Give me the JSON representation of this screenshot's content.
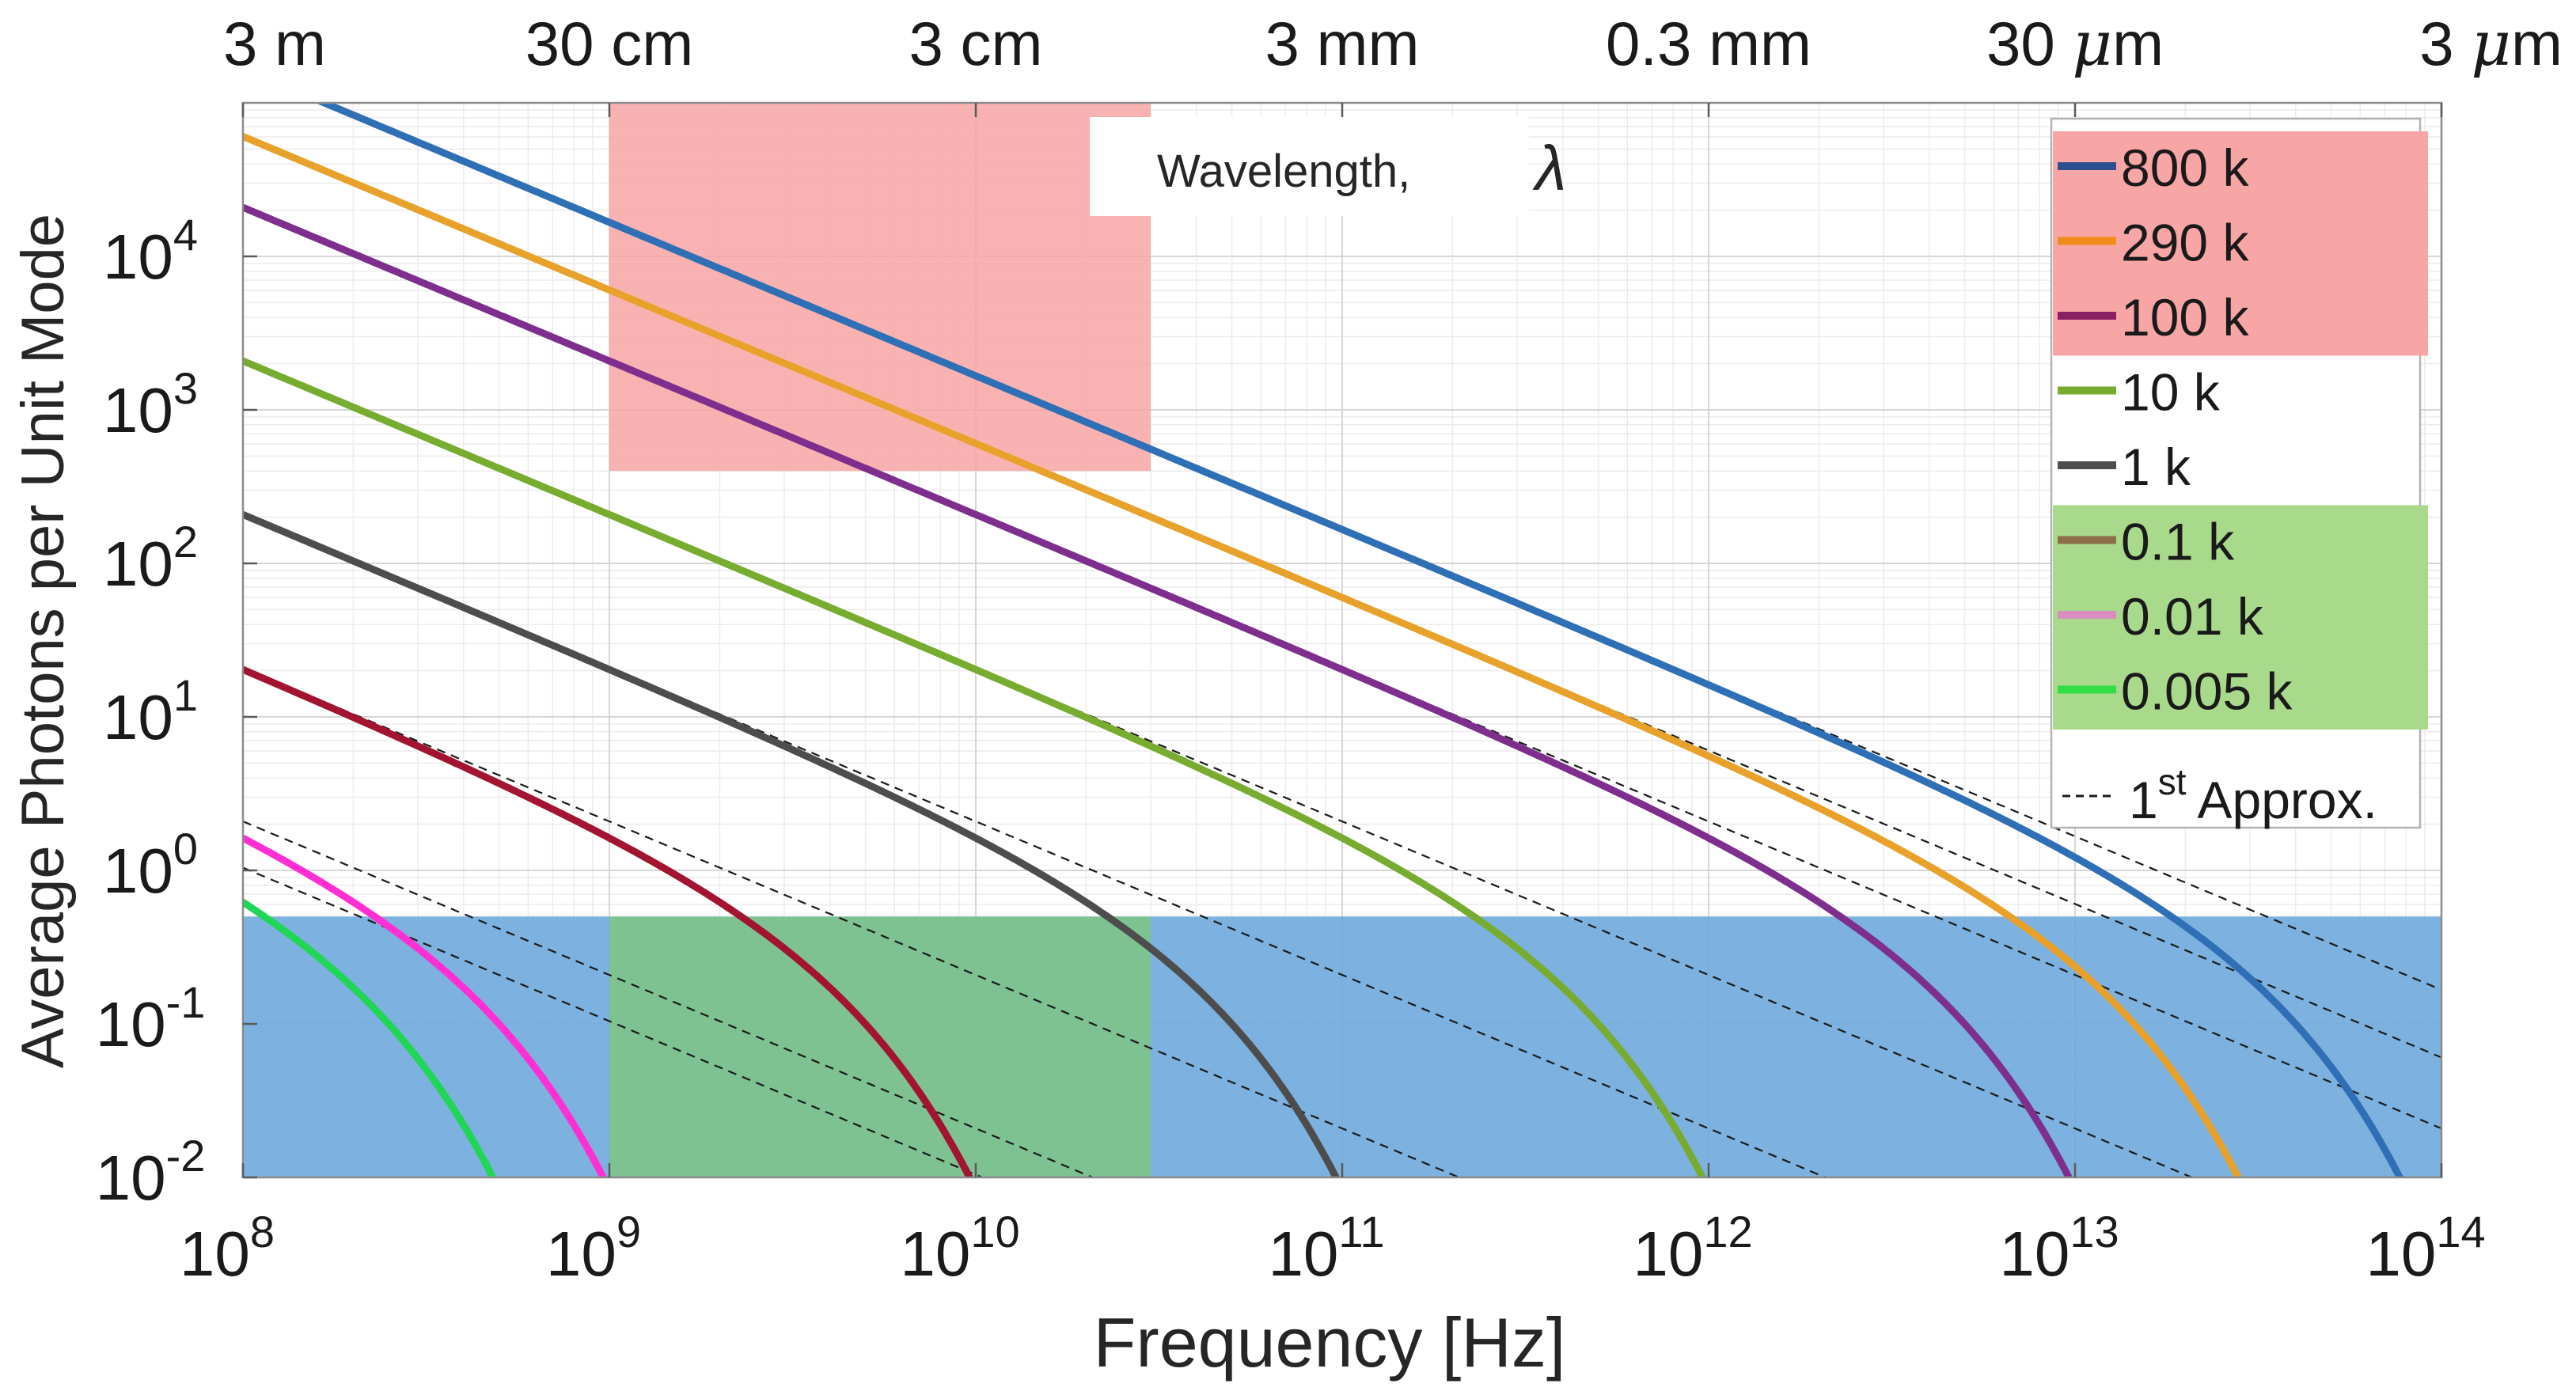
{
  "chart_data": {
    "type": "line",
    "xlabel": "Frequency [Hz]",
    "ylabel": "Average Photons per Unit Mode",
    "x_scale": "log",
    "y_scale": "log",
    "xlim": [
      100000000,
      100000000000000
    ],
    "ylim": [
      0.01,
      100000
    ],
    "grid": true,
    "legend_position": "right",
    "x_ticks": [
      {
        "value": 100000000,
        "base": "10",
        "exp": "8"
      },
      {
        "value": 1000000000,
        "base": "10",
        "exp": "9"
      },
      {
        "value": 10000000000,
        "base": "10",
        "exp": "10"
      },
      {
        "value": 100000000000,
        "base": "10",
        "exp": "11"
      },
      {
        "value": 1000000000000,
        "base": "10",
        "exp": "12"
      },
      {
        "value": 10000000000000,
        "base": "10",
        "exp": "13"
      },
      {
        "value": 100000000000000,
        "base": "10",
        "exp": "14"
      }
    ],
    "y_ticks": [
      {
        "value": 0.01,
        "base": "10",
        "exp": "-2"
      },
      {
        "value": 0.1,
        "base": "10",
        "exp": "-1"
      },
      {
        "value": 1,
        "base": "10",
        "exp": "0"
      },
      {
        "value": 10,
        "base": "10",
        "exp": "1"
      },
      {
        "value": 100,
        "base": "10",
        "exp": "2"
      },
      {
        "value": 1000,
        "base": "10",
        "exp": "3"
      },
      {
        "value": 10000,
        "base": "10",
        "exp": "4"
      }
    ],
    "top_axis": {
      "label": "Wavelength,",
      "label_symbol": "λ",
      "ticks": [
        {
          "freq": 100000000,
          "text": "3 m"
        },
        {
          "freq": 1000000000,
          "text": "30 cm"
        },
        {
          "freq": 10000000000,
          "text": "3 cm"
        },
        {
          "freq": 100000000000,
          "text": "3 mm"
        },
        {
          "freq": 1000000000000,
          "text": "0.3 mm"
        },
        {
          "freq": 10000000000000,
          "text": "30 μm"
        },
        {
          "freq": 100000000000000,
          "text": "3 μm"
        }
      ]
    },
    "regions": [
      {
        "name": "top-left-band",
        "x": [
          1000000000,
          30000000000
        ],
        "y": [
          400,
          100000
        ],
        "color": "#f8a5a5"
      },
      {
        "name": "bottom-band",
        "x": [
          100000000,
          100000000000000
        ],
        "y": [
          0.01,
          0.5
        ],
        "color": "#6fa8dc"
      },
      {
        "name": "overlap-band",
        "x": [
          1000000000,
          30000000000
        ],
        "y": [
          0.01,
          0.5
        ],
        "color": "#7ec48a"
      }
    ],
    "series": [
      {
        "name": "800 k",
        "temperature_k": 800,
        "color": "#2e6fb5",
        "legend_color": "#2e4f8f"
      },
      {
        "name": "290 k",
        "temperature_k": 290,
        "color": "#e8a22b",
        "legend_color": "#f08c1a"
      },
      {
        "name": "100 k",
        "temperature_k": 100,
        "color": "#7e2f8e",
        "legend_color": "#8a1f63"
      },
      {
        "name": "10 k",
        "temperature_k": 10,
        "color": "#77ac30",
        "legend_color": "#77ac30"
      },
      {
        "name": "1 k",
        "temperature_k": 1,
        "color": "#4d4d4d",
        "legend_color": "#4d4d4d"
      },
      {
        "name": "0.1 k",
        "temperature_k": 0.1,
        "color": "#a2142f",
        "legend_color": "#8c6e4a"
      },
      {
        "name": "0.01 k",
        "temperature_k": 0.01,
        "color": "#ff2fd4",
        "legend_color": "#d98cc0"
      },
      {
        "name": "0.005 k",
        "temperature_k": 0.005,
        "color": "#1fd655",
        "legend_color": "#33dd44"
      }
    ],
    "approximation": {
      "name": "Approx.",
      "superscript": "st",
      "prefix": "1",
      "style": "dashed",
      "color": "#1a1a1a"
    },
    "legend_highlights": [
      {
        "from": "800 k",
        "to": "100 k",
        "color": "#f8a5a5"
      },
      {
        "from": "0.1 k",
        "to": "0.005 k",
        "color": "#a9d98a"
      }
    ]
  }
}
